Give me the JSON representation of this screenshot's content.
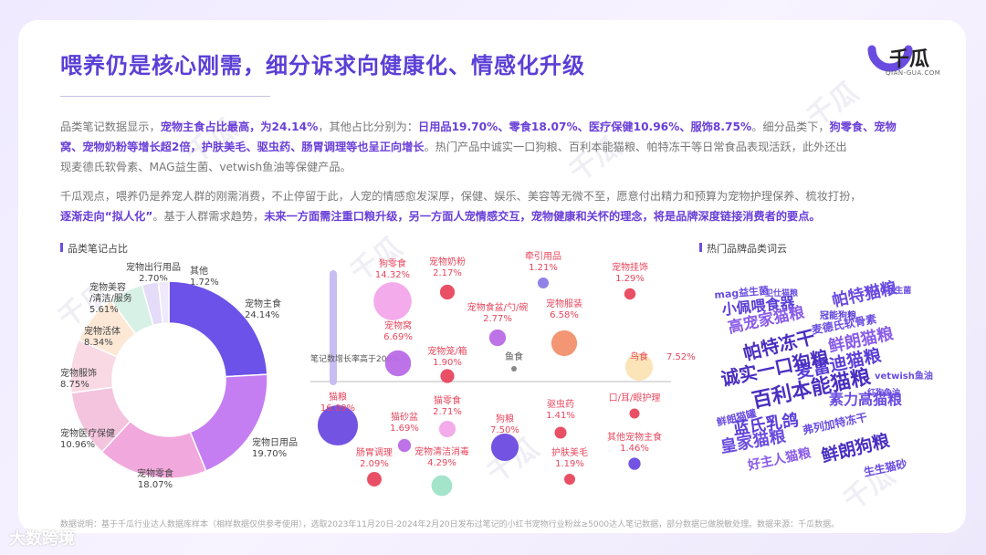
{
  "page": {
    "title": "喂养仍是核心刚需，细分诉求向健康化、情感化升级",
    "logo_text": "千瓜",
    "logo_sub": "QIAN-GUA.COM",
    "footer_note": "数据说明：基于千瓜行业达人数据库样本（相样数据仅供参考使用），选取2023年11月20日-2024年2月20日发布过笔记的小红书宠物行业粉丝≥5000达人笔记数据，部分数据已做脱敏处理。数据来源：千瓜数据。",
    "footer_brand": "大数跨境",
    "watermark": "千瓜"
  },
  "paragraph1": {
    "line1": [
      {
        "t": "品类笔记数据显示，",
        "h": false
      },
      {
        "t": "宠物主食占比最高，为24.14%",
        "h": true
      },
      {
        "t": "，其他占比分别为：",
        "h": false
      },
      {
        "t": "日用品19.70%、零食18.07%、医疗保健10.96%、服饰8.75%",
        "h": true
      },
      {
        "t": "。细分品类下，",
        "h": false
      },
      {
        "t": "狗零食、宠物",
        "h": true
      }
    ],
    "line2": [
      {
        "t": "窝、宠物奶粉等增长超2倍，护肤美毛、驱虫药、肠胃调理等也呈正向增长",
        "h": true
      },
      {
        "t": "。热门产品中诚实一口狗粮、百利本能猫粮、帕特冻干等日常食品表现活跃，此外还出",
        "h": false
      }
    ],
    "line3": [
      {
        "t": "现麦德氏软骨素、MAG益生菌、vetwish鱼油等保健产品。",
        "h": false
      }
    ]
  },
  "paragraph2": {
    "line1": [
      {
        "t": "千瓜观点，喂养仍是养宠人群的刚需消费，不止停留于此，人宠的情感愈发深厚，保健、娱乐、美容等无微不至，愿意付出精力和预算为宠物护理保养、梳妆打扮，",
        "h": false
      }
    ],
    "line2": [
      {
        "t": "逐渐走向“拟人化”",
        "h": true
      },
      {
        "t": "。基于人群需求趋势，",
        "h": false
      },
      {
        "t": "未来一方面需注重口粮升级，另一方面人宠情感交互，宠物健康和关怀的理念，将是品牌深度链接消费者的要点。",
        "h": true
      }
    ]
  },
  "sections": {
    "donut_label": "品类笔记占比",
    "wordcloud_label": "热门品牌品类词云"
  },
  "colors": {
    "accent": "#5b3fd6",
    "bubble_text": "#e8475d"
  },
  "chart_data": [
    {
      "type": "pie",
      "title": "品类笔记占比",
      "donut": true,
      "slices": [
        {
          "name": "宠物主食",
          "value": 24.14,
          "label": "24.14%",
          "color": "#6c52e8"
        },
        {
          "name": "宠物日用品",
          "value": 19.7,
          "label": "19.70%",
          "color": "#c57ef2"
        },
        {
          "name": "宠物零食",
          "value": 18.07,
          "label": "18.07%",
          "color": "#f1a8dc"
        },
        {
          "name": "宠物医疗保健",
          "value": 10.96,
          "label": "10.96%",
          "color": "#f4c4df"
        },
        {
          "name": "宠物服饰",
          "value": 8.75,
          "label": "8.75%",
          "color": "#f8d9e4"
        },
        {
          "name": "宠物活体",
          "value": 8.34,
          "label": "8.34%",
          "color": "#fde8d6"
        },
        {
          "name": "宠物美容/清洁/服务",
          "value": 5.61,
          "label": "5.61%",
          "color": "#d8f1e6"
        },
        {
          "name": "宠物出行用品",
          "value": 2.7,
          "label": "2.70%",
          "color": "#e4dcf8"
        },
        {
          "name": "其他",
          "value": 1.72,
          "label": "1.72%",
          "color": "#efe9fb"
        }
      ]
    },
    {
      "type": "scatter",
      "note": "笔记数增长率高于200%",
      "threshold_label": "鱼食",
      "bubbles": [
        {
          "name": "狗零食",
          "value": "14.32%",
          "size": 14.32,
          "color": "#f2a7ea",
          "side": "above"
        },
        {
          "name": "宠物奶粉",
          "value": "2.17%",
          "size": 2.17,
          "color": "#e8475d",
          "side": "above"
        },
        {
          "name": "牵引用品",
          "value": "1.21%",
          "size": 1.21,
          "color": "#8a7be6",
          "side": "above"
        },
        {
          "name": "宠物挂饰",
          "value": "1.29%",
          "size": 1.29,
          "color": "#e8475d",
          "side": "above"
        },
        {
          "name": "宠物食盆/勺/碗",
          "value": "2.77%",
          "size": 2.77,
          "color": "#b96ce6",
          "side": "above"
        },
        {
          "name": "宠物服装",
          "value": "6.58%",
          "size": 6.58,
          "color": "#f2906c",
          "side": "above"
        },
        {
          "name": "宠物窝",
          "value": "6.69%",
          "size": 6.69,
          "color": "#b96ce6",
          "side": "above"
        },
        {
          "name": "宠物笼/箱",
          "value": "1.90%",
          "size": 1.9,
          "color": "#e8475d",
          "side": "above"
        },
        {
          "name": "鸟食",
          "value": "7.52%",
          "size": 7.52,
          "color": "#fbe3b3",
          "side": "above"
        },
        {
          "name": "猫粮",
          "value": "16.09%",
          "size": 16.09,
          "color": "#6b4ae0",
          "side": "below"
        },
        {
          "name": "猫砂盆",
          "value": "1.69%",
          "size": 1.69,
          "color": "#b96ce6",
          "side": "below"
        },
        {
          "name": "猫零食",
          "value": "2.71%",
          "size": 2.71,
          "color": "#f2a7ea",
          "side": "below"
        },
        {
          "name": "驱虫药",
          "value": "1.41%",
          "size": 1.41,
          "color": "#e8475d",
          "side": "below"
        },
        {
          "name": "口/耳/眼护理",
          "value": "",
          "size": 1.0,
          "color": "#e8475d",
          "side": "below"
        },
        {
          "name": "狗粮",
          "value": "7.50%",
          "size": 7.5,
          "color": "#6b4ae0",
          "side": "below"
        },
        {
          "name": "其他宠物主食",
          "value": "1.46%",
          "size": 1.46,
          "color": "#6b4ae0",
          "side": "below"
        },
        {
          "name": "肠胃调理",
          "value": "2.09%",
          "size": 2.09,
          "color": "#e8475d",
          "side": "below"
        },
        {
          "name": "宠物清洁消毒",
          "value": "4.29%",
          "size": 4.29,
          "color": "#9fe3c8",
          "side": "below"
        },
        {
          "name": "护肤美毛",
          "value": "1.19%",
          "size": 1.19,
          "color": "#e8475d",
          "side": "below"
        }
      ]
    }
  ],
  "wordcloud": [
    {
      "w": "mag益生菌",
      "color": "#6a4ce0"
    },
    {
      "w": "卫仕猫粮",
      "color": "#6a4ce0"
    },
    {
      "w": "小佩喂食器",
      "color": "#5b3fd6"
    },
    {
      "w": "帕特猫粮",
      "color": "#6a4ce0"
    },
    {
      "w": "MAG益生菌",
      "color": "#6a4ce0"
    },
    {
      "w": "冠能狗粮",
      "color": "#5b3fd6"
    },
    {
      "w": "高宠家猫粮",
      "color": "#8a5ce8"
    },
    {
      "w": "麦德氏软骨素",
      "color": "#6a4ce0"
    },
    {
      "w": "帕特冻干",
      "color": "#4a2fc0"
    },
    {
      "w": "鲜朗猫粮",
      "color": "#8a5ce8"
    },
    {
      "w": "麦富迪猫粮",
      "color": "#5b3fd6"
    },
    {
      "w": "诚实一口狗粮",
      "color": "#4a2fc0"
    },
    {
      "w": "vetwish鱼油",
      "color": "#6a4ce0"
    },
    {
      "w": "百利本能猫粮",
      "color": "#4a2fc0"
    },
    {
      "w": "素力高猫粮",
      "color": "#6a4ce0"
    },
    {
      "w": "红狗鱼油",
      "color": "#6a4ce0"
    },
    {
      "w": "蓝氏乳鸽",
      "color": "#5b3fd6"
    },
    {
      "w": "鲜朗猫罐",
      "color": "#6a4ce0"
    },
    {
      "w": "弗列加特冻干",
      "color": "#6a4ce0"
    },
    {
      "w": "皇家猫粮",
      "color": "#6a4ce0"
    },
    {
      "w": "好主人猫粮",
      "color": "#8a5ce8"
    },
    {
      "w": "鲜朗狗粮",
      "color": "#4a2fc0"
    },
    {
      "w": "生生猫砂",
      "color": "#6a4ce0"
    }
  ]
}
